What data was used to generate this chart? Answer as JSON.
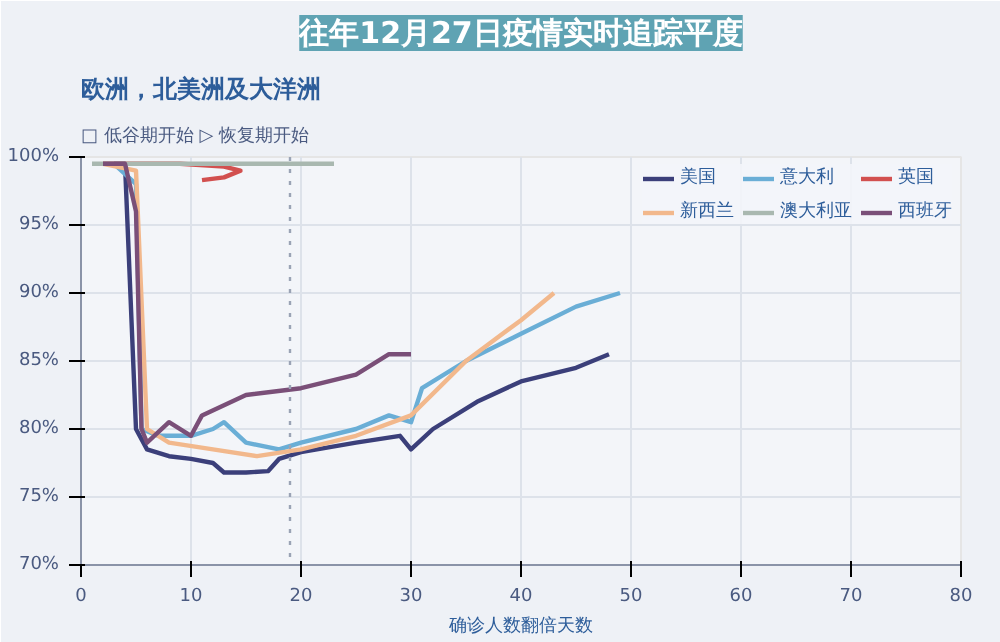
{
  "chart_data": {
    "type": "line",
    "title": "往年12月27日疫情实时追踪平度",
    "subtitle": "欧洲，北美洲及大洋洲",
    "xlabel": "确诊人数翻倍天数",
    "annotations": [
      "□ 低谷期开始",
      "▷ 恢复期开始"
    ],
    "series": [
      {
        "name": "美国",
        "color": "#3b3f7a",
        "x": [
          3,
          4,
          5,
          6,
          8,
          10,
          12,
          13,
          15,
          17,
          18,
          20,
          25,
          29,
          30,
          32,
          36,
          40,
          45,
          48
        ],
        "values": [
          99.5,
          99.5,
          80,
          78.5,
          78,
          77.8,
          77.5,
          76.8,
          76.8,
          76.9,
          77.8,
          78.3,
          79,
          79.5,
          78.5,
          80,
          82,
          83.5,
          84.5,
          85.5
        ]
      },
      {
        "name": "意大利",
        "color": "#6aaed6",
        "x": [
          3,
          5,
          5.5,
          7,
          10,
          12,
          13,
          15,
          18,
          20,
          25,
          28,
          30,
          31,
          35,
          40,
          45,
          49
        ],
        "values": [
          99.5,
          98,
          80,
          79.5,
          79.5,
          80,
          80.5,
          79,
          78.5,
          79,
          80,
          81,
          80.5,
          83,
          85,
          87,
          89,
          90
        ]
      },
      {
        "name": "英国",
        "color": "#d2504f",
        "x": [
          2,
          9,
          13,
          14.5,
          13,
          11
        ],
        "values": [
          99.5,
          99.5,
          99.3,
          99,
          98.5,
          98.3
        ]
      },
      {
        "name": "新西兰",
        "color": "#f2b88c",
        "x": [
          2,
          5,
          6,
          8,
          12,
          16,
          20,
          25,
          30,
          35,
          40,
          43
        ],
        "values": [
          99.5,
          99,
          80,
          79,
          78.5,
          78,
          78.5,
          79.5,
          81,
          85,
          88,
          90
        ]
      },
      {
        "name": "澳大利亚",
        "color": "#a9b8b0",
        "x": [
          1,
          23
        ],
        "values": [
          99.5,
          99.5
        ]
      },
      {
        "name": "西班牙",
        "color": "#7a4f78",
        "x": [
          2,
          4,
          5,
          5.5,
          6,
          8,
          10,
          11,
          15,
          20,
          25,
          28,
          30
        ],
        "values": [
          99.5,
          99.5,
          96,
          80,
          79,
          80.5,
          79.5,
          81,
          82.5,
          83,
          84,
          85.5,
          85.5
        ]
      }
    ],
    "xlim": [
      0,
      80
    ],
    "xticks": [
      0,
      10,
      20,
      30,
      40,
      50,
      60,
      70,
      80
    ],
    "ylim": [
      70,
      100
    ],
    "yticks": [
      {
        "value": 70,
        "label": "70%"
      },
      {
        "value": 75,
        "label": "75%"
      },
      {
        "value": 80,
        "label": "80%"
      },
      {
        "value": 85,
        "label": "85%"
      },
      {
        "value": 90,
        "label": "90%"
      },
      {
        "value": 95,
        "label": "95%"
      },
      {
        "value": 100,
        "label": "100%"
      }
    ],
    "ref_lines": [
      {
        "axis": "x",
        "value": 19,
        "color": "#9aa3b5",
        "line_style": "dotted"
      }
    ],
    "grid": true,
    "legend": "top",
    "marker": "none",
    "line_style": "solid"
  }
}
